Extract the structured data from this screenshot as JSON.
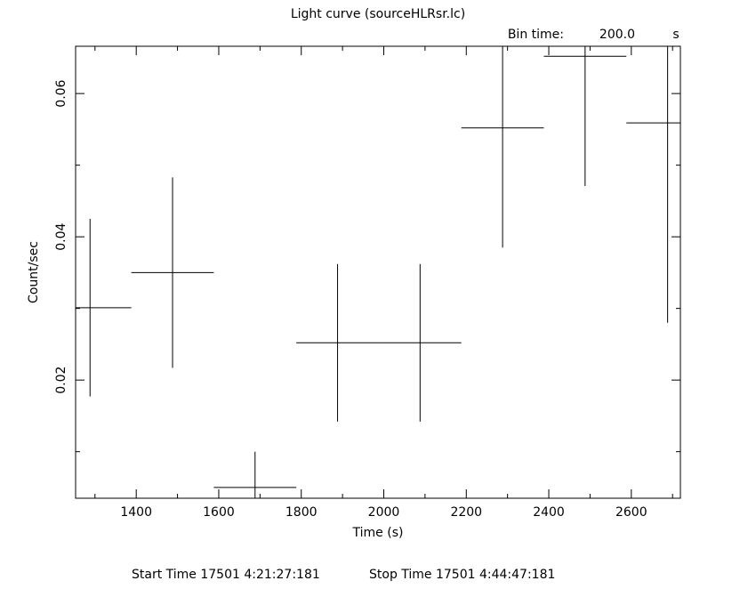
{
  "chart_data": {
    "type": "errorbar",
    "title": "Light curve (sourceHLRsr.lc)",
    "bin_time": {
      "label": "Bin time:",
      "value": "200.0",
      "unit": "s"
    },
    "x_label": "Time (s)",
    "y_label": "Count/sec",
    "x": [
      1288,
      1488,
      1688,
      1888,
      2088,
      2288,
      2488,
      2688
    ],
    "x_halfwidth": 100,
    "values": [
      0.0301,
      0.035,
      0.005,
      0.0252,
      0.0252,
      0.0552,
      0.0652,
      0.0559
    ],
    "errors": [
      0.0124,
      0.0133,
      0.005,
      0.011,
      0.011,
      0.0167,
      0.0181,
      0.0279
    ],
    "color": "#000000",
    "xlim": [
      1253,
      2719
    ],
    "ylim": [
      0.0035,
      0.0666
    ],
    "xticks": [
      1400,
      1600,
      1800,
      2000,
      2200,
      2400,
      2600
    ],
    "xminor": [
      1300,
      1500,
      1700,
      1900,
      2100,
      2300,
      2500,
      2700
    ],
    "yticks": [
      0.02,
      0.04,
      0.06
    ],
    "yminor": [
      0.01,
      0.03,
      0.05
    ],
    "footer": [
      "Start Time 17501  4:21:27:181",
      "Stop Time 17501  4:44:47:181"
    ]
  }
}
